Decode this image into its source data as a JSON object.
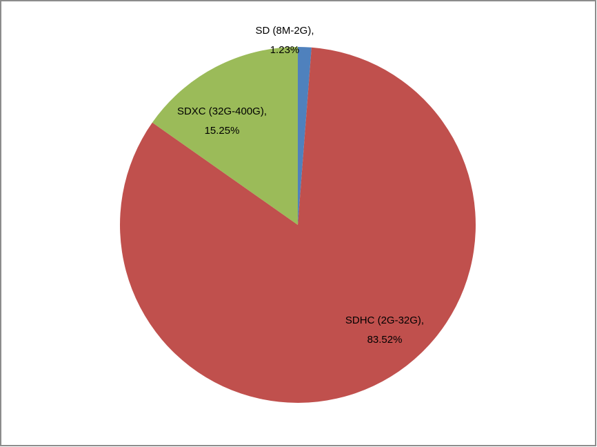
{
  "chart_data": {
    "type": "pie",
    "categories": [
      "SD (8M-2G),",
      "SDHC (2G-32G),",
      "SDXC (32G-400G),"
    ],
    "values": [
      1.23,
      83.52,
      15.25
    ],
    "value_labels": [
      "1.23%",
      "83.52%",
      "15.25%"
    ],
    "colors": [
      "#4f81bd",
      "#c0504d",
      "#9bbb59"
    ]
  }
}
